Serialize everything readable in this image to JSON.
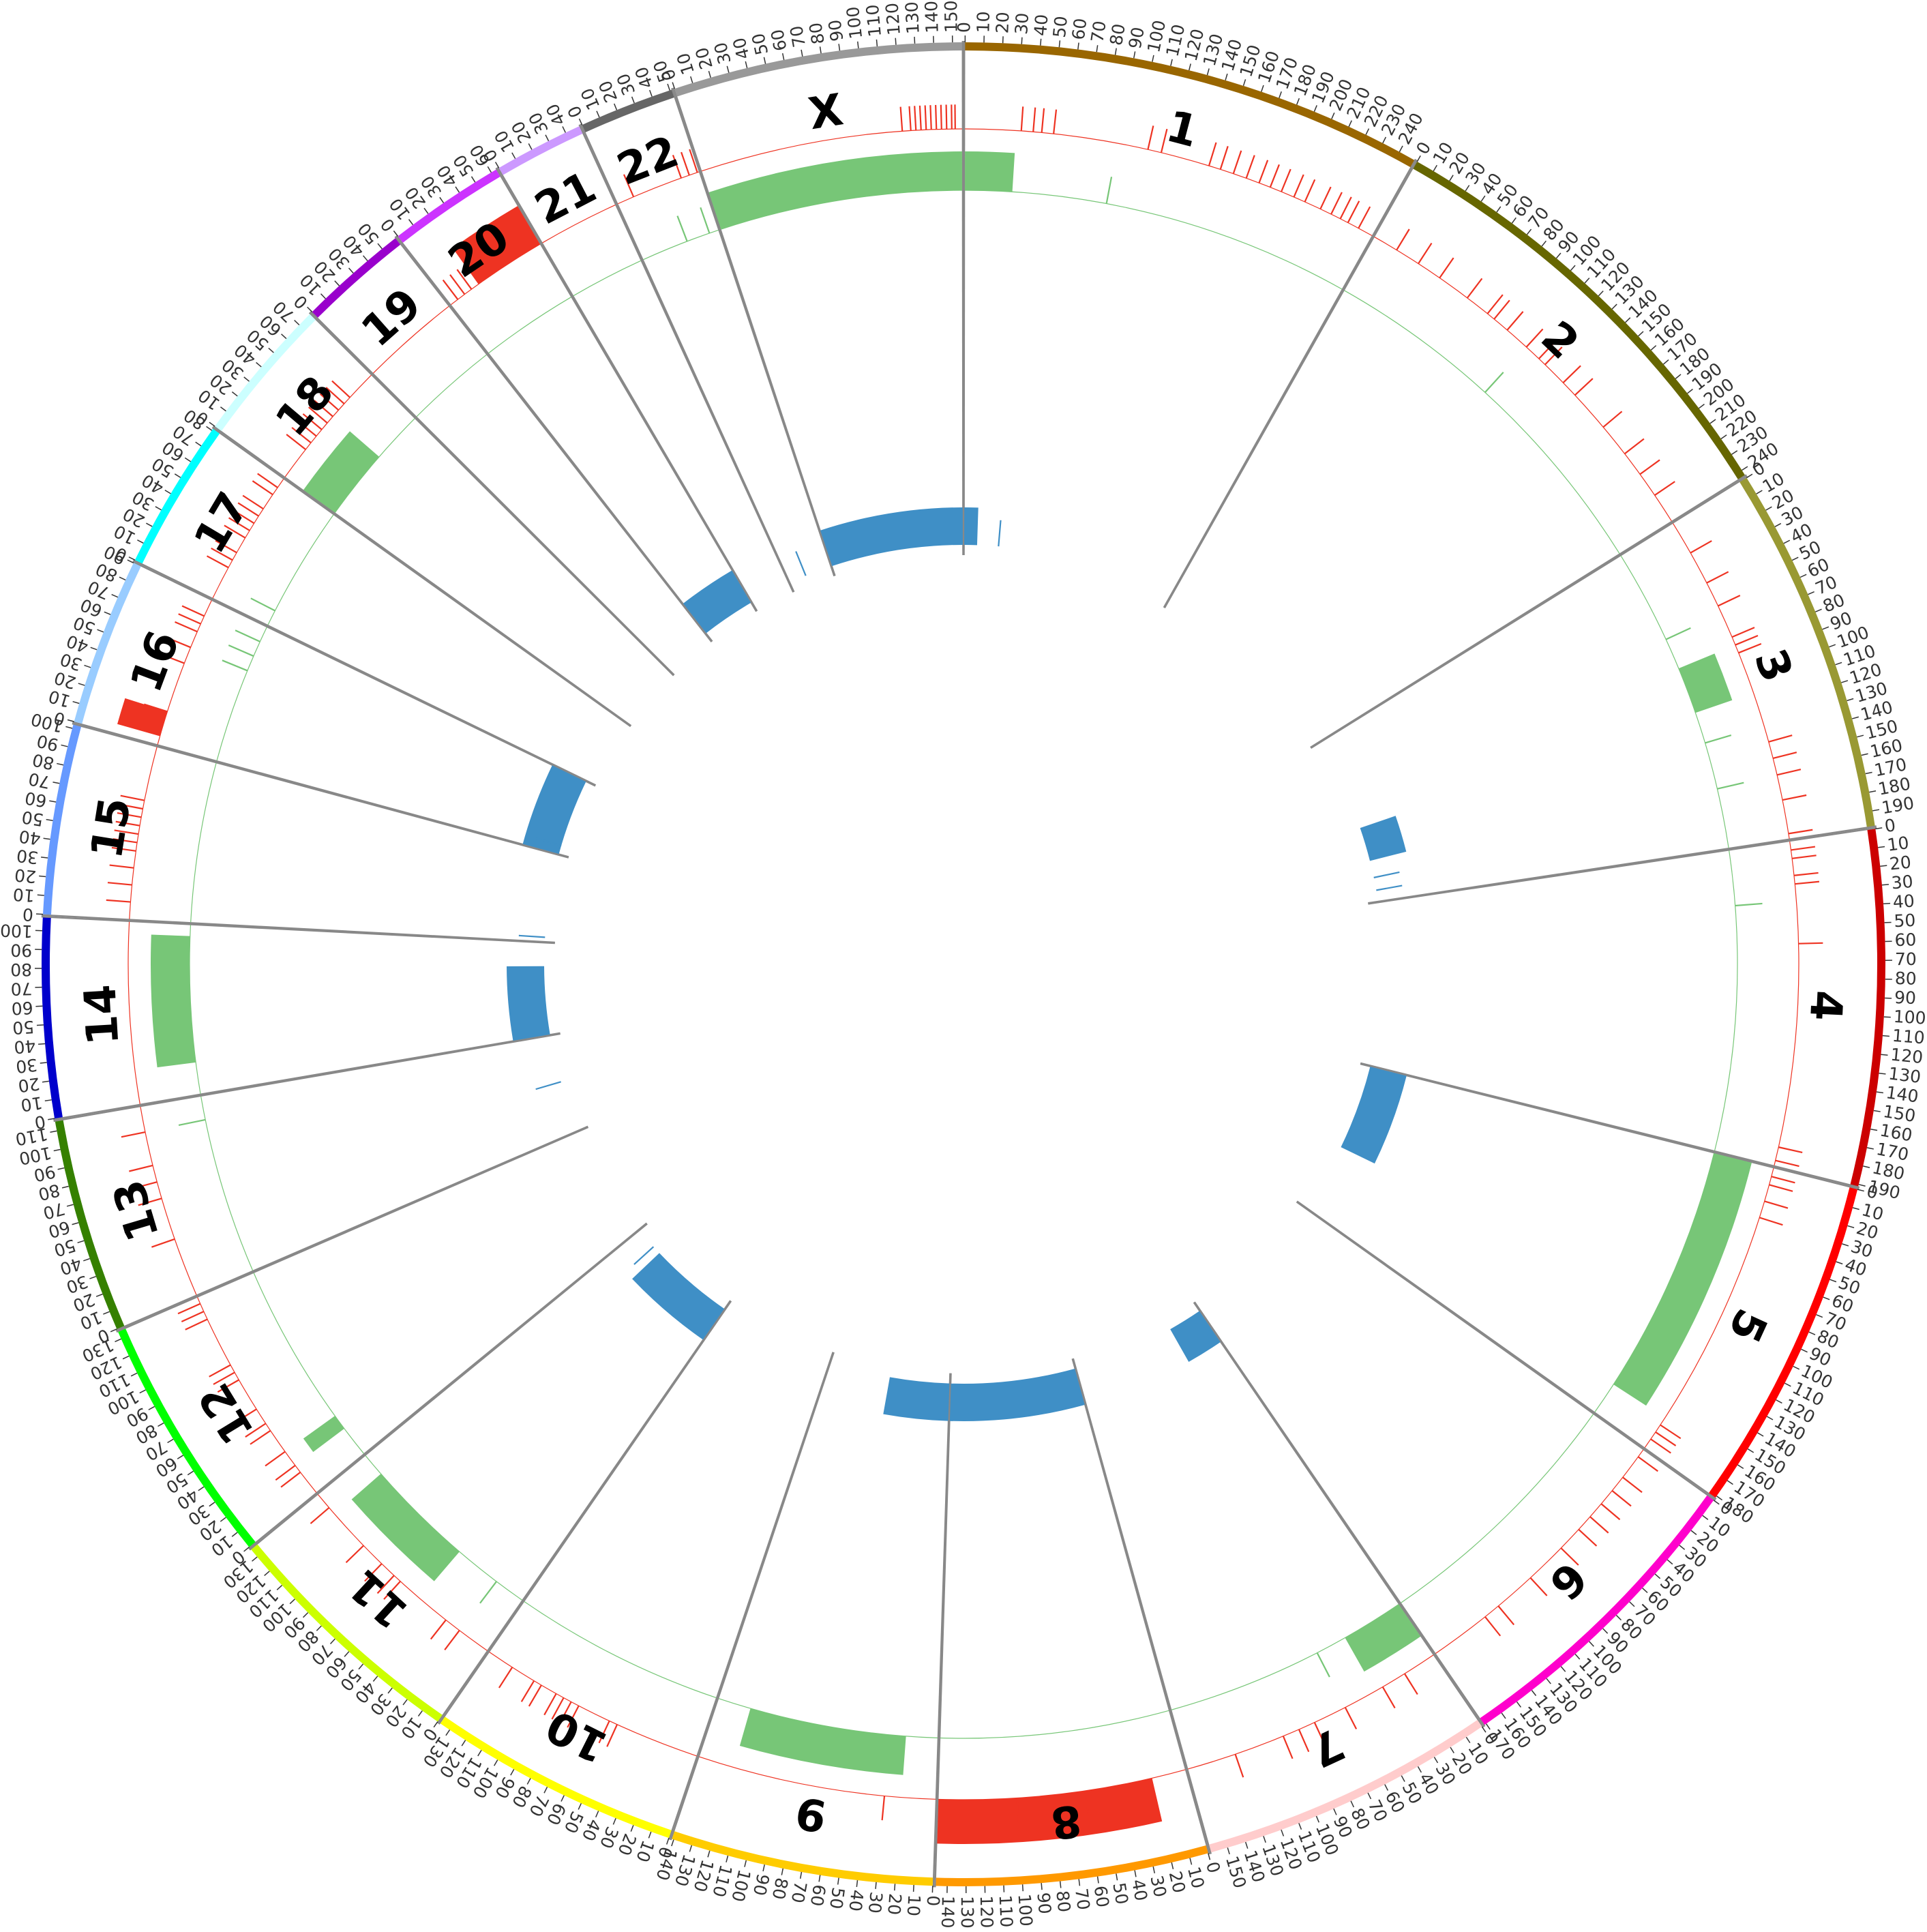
{
  "chart_data": {
    "type": "circos",
    "genome": "human",
    "tick_interval_mb": 10,
    "chromosomes": [
      {
        "name": "1",
        "length_mb": 249,
        "color": "#996600"
      },
      {
        "name": "2",
        "length_mb": 243,
        "color": "#666600"
      },
      {
        "name": "3",
        "length_mb": 198,
        "color": "#999933"
      },
      {
        "name": "4",
        "length_mb": 191,
        "color": "#cc0000"
      },
      {
        "name": "5",
        "length_mb": 181,
        "color": "#ff0000"
      },
      {
        "name": "6",
        "length_mb": 171,
        "color": "#ff00cc"
      },
      {
        "name": "7",
        "length_mb": 159,
        "color": "#ffcccc"
      },
      {
        "name": "8",
        "length_mb": 146,
        "color": "#ff9900"
      },
      {
        "name": "9",
        "length_mb": 141,
        "color": "#ffcc00"
      },
      {
        "name": "10",
        "length_mb": 136,
        "color": "#ffff00"
      },
      {
        "name": "11",
        "length_mb": 135,
        "color": "#ccff00"
      },
      {
        "name": "12",
        "length_mb": 134,
        "color": "#00ff00"
      },
      {
        "name": "13",
        "length_mb": 115,
        "color": "#358000"
      },
      {
        "name": "14",
        "length_mb": 107,
        "color": "#0000cc"
      },
      {
        "name": "15",
        "length_mb": 102,
        "color": "#6699ff"
      },
      {
        "name": "16",
        "length_mb": 90,
        "color": "#99ccff"
      },
      {
        "name": "17",
        "length_mb": 81,
        "color": "#00ffff"
      },
      {
        "name": "18",
        "length_mb": 78,
        "color": "#ccffff"
      },
      {
        "name": "19",
        "length_mb": 59,
        "color": "#9900cc"
      },
      {
        "name": "20",
        "length_mb": 63,
        "color": "#cc33ff"
      },
      {
        "name": "21",
        "length_mb": 48,
        "color": "#cc99ff"
      },
      {
        "name": "22",
        "length_mb": 51,
        "color": "#666666"
      },
      {
        "name": "X",
        "length_mb": 155,
        "color": "#999999"
      }
    ],
    "tracks": {
      "red": {
        "color": "#ee3322",
        "blocks": [
          {
            "chr": "8",
            "start": 20,
            "end": 146
          },
          {
            "chr": "20",
            "start": 20,
            "end": 63
          },
          {
            "chr": "16",
            "start": 5,
            "end": 20
          }
        ],
        "ticks": [
          {
            "chr": "1",
            "pos": [
              33,
              40,
              45,
              52,
              108,
              116,
              145,
              152,
              160,
              168,
              176,
              183,
              190,
              198,
              205,
              215,
              222,
              228,
              233,
              240
            ]
          },
          {
            "chr": "2",
            "pos": [
              15,
              30,
              45,
              65,
              80,
              85,
              95,
              110,
              120,
              125,
              140,
              150,
              175,
              195,
              210,
              225
            ]
          },
          {
            "chr": "3",
            "pos": [
              20,
              40,
              55,
              75,
              80,
              85,
              140,
              150,
              160,
              175,
              195
            ]
          },
          {
            "chr": "4",
            "pos": [
              5,
              10,
              20,
              25,
              60,
              180,
              188
            ]
          },
          {
            "chr": "5",
            "pos": [
              5,
              10,
              20,
              30,
              165,
              170,
              175
            ]
          },
          {
            "chr": "6",
            "pos": [
              5,
              20,
              30,
              40,
              50,
              60,
              75,
              100,
              125,
              135
            ]
          },
          {
            "chr": "7",
            "pos": [
              20,
              35,
              60,
              80,
              90,
              100,
              130
            ]
          },
          {
            "chr": "8",
            "pos": [
              60,
              100
            ]
          },
          {
            "chr": "9",
            "pos": [
              30
            ]
          },
          {
            "chr": "10",
            "pos": [
              50,
              55,
              75,
              80,
              85,
              90,
              100,
              105,
              120
            ]
          },
          {
            "chr": "11",
            "pos": [
              20,
              30,
              65,
              70,
              80,
              95,
              125
            ]
          },
          {
            "chr": "12",
            "pos": [
              15,
              20,
              30,
              45,
              50,
              60,
              80,
              85,
              90,
              120,
              125,
              130
            ]
          },
          {
            "chr": "13",
            "pos": [
              35,
              60,
              70,
              80,
              100
            ]
          },
          {
            "chr": "15",
            "pos": [
              10,
              20,
              30,
              40,
              45,
              50,
              55,
              60,
              65,
              70
            ]
          },
          {
            "chr": "16",
            "pos": [
              20,
              50,
              60,
              70,
              75,
              80
            ]
          },
          {
            "chr": "17",
            "pos": [
              20,
              25,
              30,
              40,
              45,
              50,
              55,
              60,
              70,
              75
            ]
          },
          {
            "chr": "18",
            "pos": [
              20,
              25,
              30,
              35,
              40,
              45,
              50,
              55,
              60
            ]
          },
          {
            "chr": "20",
            "pos": [
              5,
              10,
              15
            ]
          },
          {
            "chr": "22",
            "pos": [
              10,
              40,
              45,
              50
            ]
          },
          {
            "chr": "X",
            "pos": [
              120,
              125,
              128,
              131,
              134,
              137,
              140,
              143,
              146,
              149,
              151
            ]
          }
        ]
      },
      "green": {
        "color": "#77c677",
        "blocks": [
          {
            "chr": "X",
            "start": 0,
            "end": 155
          },
          {
            "chr": "1",
            "start": 0,
            "end": 30
          },
          {
            "chr": "3",
            "start": 80,
            "end": 110
          },
          {
            "chr": "5",
            "start": 0,
            "end": 160
          },
          {
            "chr": "7",
            "start": 0,
            "end": 40
          },
          {
            "chr": "9",
            "start": 20,
            "end": 120
          },
          {
            "chr": "11",
            "start": 50,
            "end": 120
          },
          {
            "chr": "12",
            "start": 20,
            "end": 30
          },
          {
            "chr": "14",
            "start": 20,
            "end": 100
          },
          {
            "chr": "18",
            "start": 0,
            "end": 45
          }
        ],
        "ticks": [
          {
            "chr": "1",
            "pos": [
              90
            ]
          },
          {
            "chr": "2",
            "pos": [
              110
            ]
          },
          {
            "chr": "3",
            "pos": [
              60,
              130,
              160
            ]
          },
          {
            "chr": "4",
            "pos": [
              35
            ]
          },
          {
            "chr": "7",
            "pos": [
              60
            ]
          },
          {
            "chr": "11",
            "pos": [
              20
            ]
          },
          {
            "chr": "13",
            "pos": [
              100
            ]
          },
          {
            "chr": "16",
            "pos": [
              60,
              70,
              80
            ]
          },
          {
            "chr": "17",
            "pos": [
              10
            ]
          },
          {
            "chr": "22",
            "pos": [
              30,
              45
            ]
          }
        ]
      },
      "blue": {
        "color": "#3f8fc6",
        "blocks": [
          {
            "chr": "X",
            "start": 0,
            "end": 155
          },
          {
            "chr": "1",
            "start": 0,
            "end": 15
          },
          {
            "chr": "3",
            "start": 110,
            "end": 150
          },
          {
            "chr": "5",
            "start": 0,
            "end": 100
          },
          {
            "chr": "7",
            "start": 0,
            "end": 40
          },
          {
            "chr": "8",
            "start": 0,
            "end": 146
          },
          {
            "chr": "9",
            "start": 0,
            "end": 70
          },
          {
            "chr": "11",
            "start": 0,
            "end": 100
          },
          {
            "chr": "14",
            "start": 0,
            "end": 80
          },
          {
            "chr": "16",
            "start": 0,
            "end": 90
          },
          {
            "chr": "20",
            "start": 0,
            "end": 63
          }
        ],
        "ticks": [
          {
            "chr": "1",
            "pos": [
              40
            ]
          },
          {
            "chr": "3",
            "pos": [
              170,
              185
            ]
          },
          {
            "chr": "11",
            "pos": [
              110
            ]
          },
          {
            "chr": "13",
            "pos": [
              60
            ]
          },
          {
            "chr": "15",
            "pos": [
              5
            ]
          },
          {
            "chr": "16",
            "pos": [
              10
            ]
          },
          {
            "chr": "22",
            "pos": [
              20
            ]
          }
        ]
      }
    },
    "title": ""
  }
}
